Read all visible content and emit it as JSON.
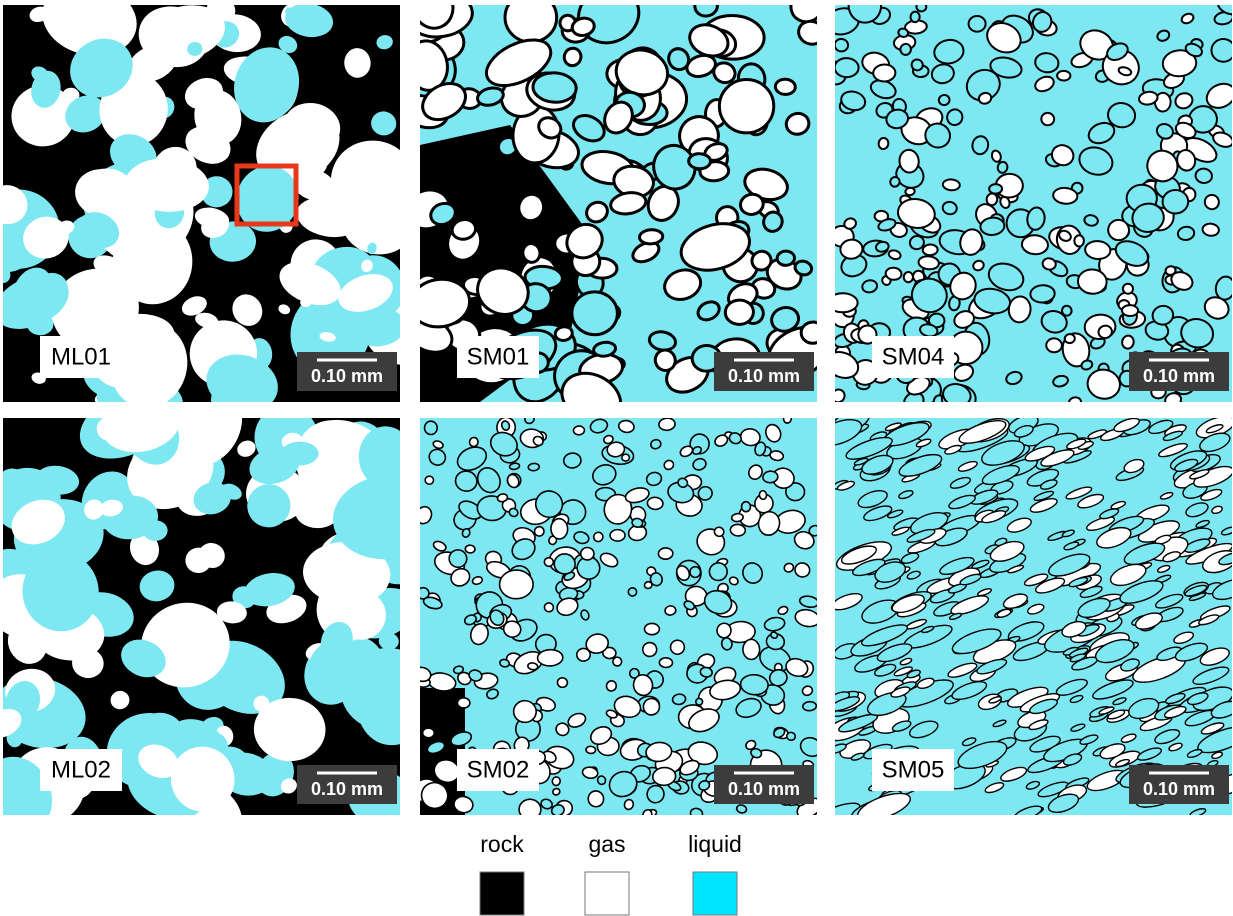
{
  "panels": [
    {
      "label": "ML01",
      "scale_bar": "0.10 mm"
    },
    {
      "label": "SM01",
      "scale_bar": "0.10 mm"
    },
    {
      "label": "SM04",
      "scale_bar": "0.10 mm"
    },
    {
      "label": "ML02",
      "scale_bar": "0.10 mm"
    },
    {
      "label": "SM02",
      "scale_bar": "0.10 mm"
    },
    {
      "label": "SM05",
      "scale_bar": "0.10 mm"
    }
  ],
  "legend": [
    {
      "label": "rock"
    },
    {
      "label": "gas"
    },
    {
      "label": "liquid"
    }
  ]
}
